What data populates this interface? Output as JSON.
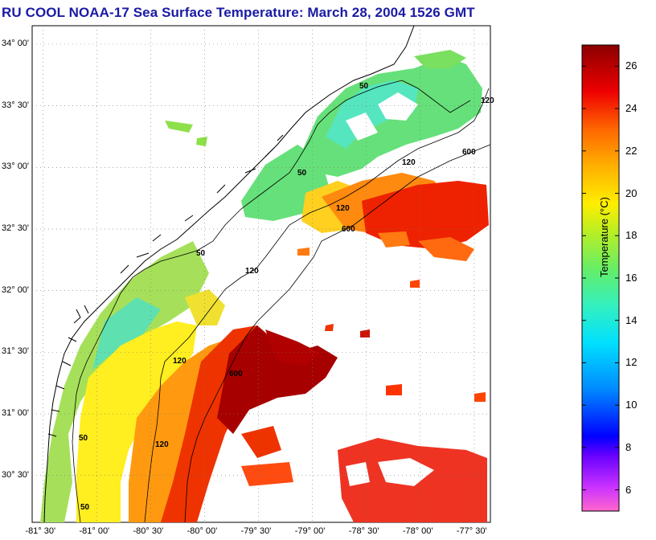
{
  "title": "RU COOL  NOAA-17  Sea Surface Temperature:  March 28, 2004 1526 GMT",
  "lat_labels": [
    {
      "label": "34° 00'",
      "lat": 34.0
    },
    {
      "label": "33° 30'",
      "lat": 33.5
    },
    {
      "label": "33° 00'",
      "lat": 33.0
    },
    {
      "label": "32° 30'",
      "lat": 32.5
    },
    {
      "label": "32° 00'",
      "lat": 32.0
    },
    {
      "label": "31° 30'",
      "lat": 31.5
    },
    {
      "label": "31° 00'",
      "lat": 31.0
    },
    {
      "label": "30° 30'",
      "lat": 30.5
    }
  ],
  "lon_labels": [
    {
      "label": "-81° 30'",
      "lon": -81.5
    },
    {
      "label": "-81° 00'",
      "lon": -81.0
    },
    {
      "label": "-80° 30'",
      "lon": -80.5
    },
    {
      "label": "-80° 00'",
      "lon": -80.0
    },
    {
      "label": "-79° 30'",
      "lon": -79.5
    },
    {
      "label": "-79° 00'",
      "lon": -79.0
    },
    {
      "label": "-78° 30'",
      "lon": -78.5
    },
    {
      "label": "-78° 00'",
      "lon": -78.0
    },
    {
      "label": "-77° 30'",
      "lon": -77.5
    }
  ],
  "isobath_labels": [
    "50",
    "50",
    "50",
    "50",
    "50",
    "120",
    "120",
    "120",
    "120",
    "120",
    "120",
    "600",
    "600",
    "600"
  ],
  "colorbar": {
    "title": "Temperature (°C)",
    "min": 5,
    "max": 27,
    "ticks": [
      "26",
      "24",
      "22",
      "20",
      "18",
      "16",
      "14",
      "12",
      "10",
      "8",
      "6"
    ]
  }
}
